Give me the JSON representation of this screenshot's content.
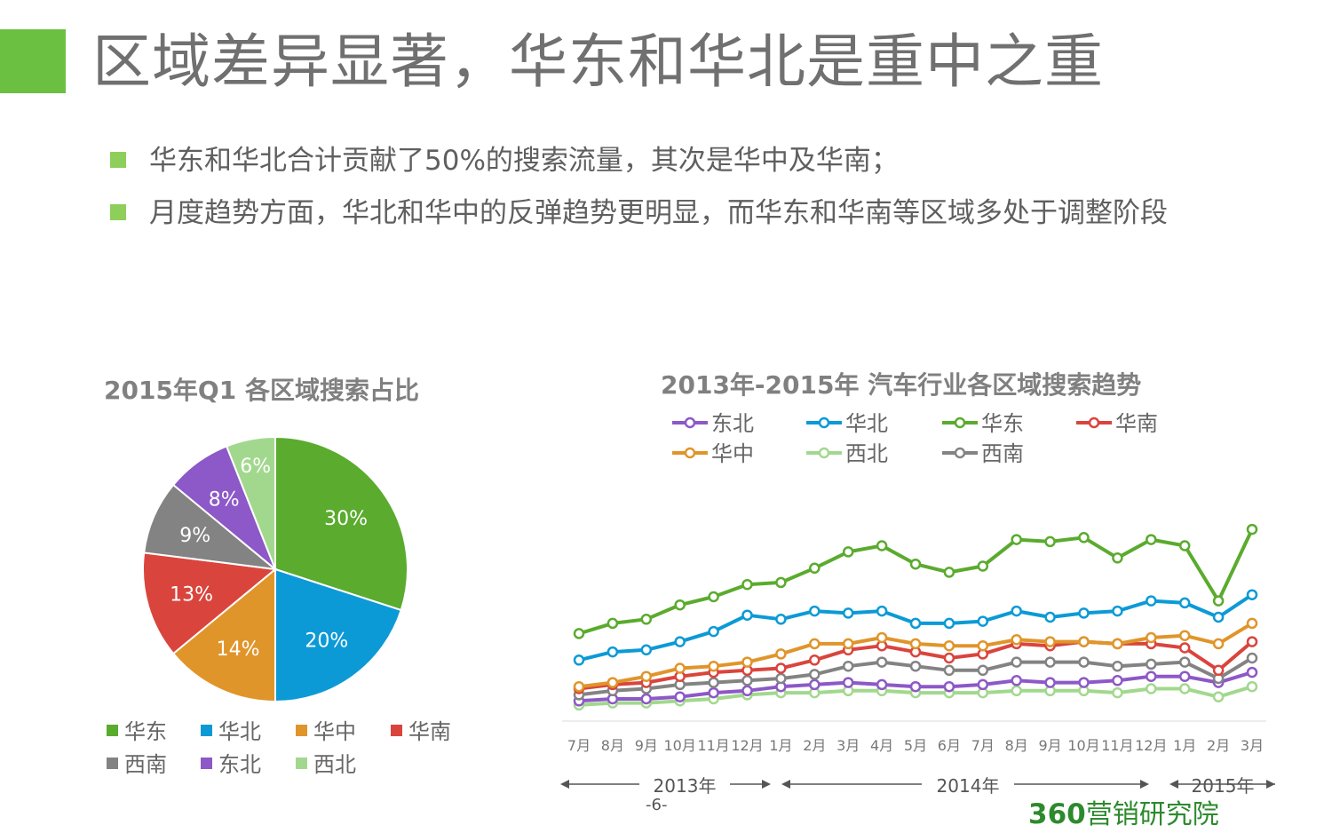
{
  "page": {
    "title": "区域差异显著，华东和华北是重中之重",
    "bullets": [
      "华东和华北合计贡献了50%的搜索流量，其次是华中及华南；",
      "月度趋势方面，华北和华中的反弹趋势更明显，而华东和华南等区域多处于调整阶段"
    ],
    "page_number": "-6-",
    "logo_num": "360",
    "logo_text": "营销研究院"
  },
  "colors": {
    "accent": "#6cc041",
    "华东": "#5aab2e",
    "华北": "#0c9ad6",
    "华中": "#e0952a",
    "华南": "#d9453d",
    "西南": "#838383",
    "东北": "#8d58c7",
    "西北": "#a2d88e"
  },
  "chart_data": [
    {
      "type": "pie",
      "title": "2015年Q1 各区域搜索占比",
      "categories": [
        "华东",
        "华北",
        "华中",
        "华南",
        "西南",
        "东北",
        "西北"
      ],
      "values": [
        30,
        20,
        14,
        13,
        9,
        8,
        6
      ],
      "labels": [
        "30%",
        "20%",
        "14%",
        "13%",
        "9%",
        "8%",
        "6%"
      ],
      "legend": "bottom"
    },
    {
      "type": "line",
      "title": "2013年-2015年 汽车行业各区域搜索趋势",
      "x": [
        "7月",
        "8月",
        "9月",
        "10月",
        "11月",
        "12月",
        "1月",
        "2月",
        "3月",
        "4月",
        "5月",
        "6月",
        "7月",
        "8月",
        "9月",
        "10月",
        "11月",
        "12月",
        "1月",
        "2月",
        "3月"
      ],
      "year_groups": [
        {
          "label": "2013年",
          "from": 0,
          "to": 5
        },
        {
          "label": "2014年",
          "from": 6,
          "to": 17
        },
        {
          "label": "2015年",
          "from": 18,
          "to": 20
        }
      ],
      "ylim": [
        0,
        100
      ],
      "legend": "top",
      "series": [
        {
          "name": "东北",
          "values": [
            9,
            10,
            10,
            11,
            13,
            14,
            16,
            17,
            18,
            17,
            16,
            16,
            17,
            19,
            18,
            18,
            19,
            21,
            21,
            18,
            23
          ]
        },
        {
          "name": "华北",
          "values": [
            29,
            33,
            34,
            38,
            43,
            51,
            49,
            53,
            52,
            53,
            47,
            47,
            48,
            53,
            50,
            52,
            53,
            58,
            57,
            50,
            61
          ]
        },
        {
          "name": "华东",
          "values": [
            42,
            47,
            49,
            56,
            60,
            66,
            67,
            74,
            82,
            85,
            76,
            72,
            75,
            88,
            87,
            89,
            79,
            88,
            85,
            58,
            93
          ]
        },
        {
          "name": "华南",
          "values": [
            15,
            17,
            18,
            21,
            23,
            24,
            25,
            29,
            34,
            36,
            33,
            30,
            32,
            37,
            36,
            38,
            37,
            37,
            35,
            24,
            38
          ]
        },
        {
          "name": "华中",
          "values": [
            16,
            18,
            21,
            25,
            26,
            28,
            32,
            37,
            37,
            40,
            37,
            36,
            36,
            39,
            38,
            38,
            37,
            40,
            41,
            37,
            47
          ]
        },
        {
          "name": "西北",
          "values": [
            7,
            8,
            8,
            9,
            10,
            12,
            13,
            13,
            14,
            14,
            13,
            13,
            13,
            14,
            14,
            14,
            13,
            15,
            15,
            11,
            16
          ]
        },
        {
          "name": "西南",
          "values": [
            12,
            14,
            15,
            17,
            18,
            19,
            20,
            22,
            26,
            28,
            26,
            24,
            24,
            28,
            28,
            28,
            26,
            27,
            28,
            20,
            30
          ]
        }
      ]
    }
  ]
}
